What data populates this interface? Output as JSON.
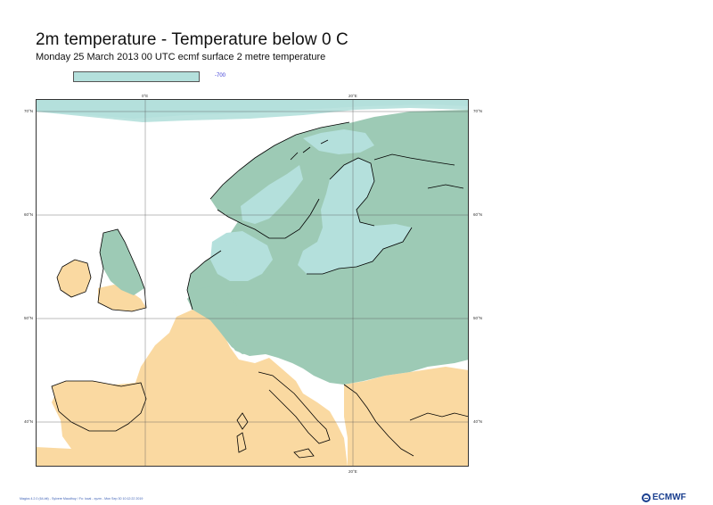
{
  "title": "2m temperature - Temperature below 0 C",
  "subtitle": "Monday 25 March 2013 00 UTC ecmf surface  2 metre temperature",
  "legend": {
    "label": "-700",
    "color": "#b4e0dc"
  },
  "colors": {
    "warm_land": "#fad9a1",
    "cold_land": "#9dcab5",
    "cold_sea": "#b4e0dc",
    "coast": "#000000",
    "grid": "#555555"
  },
  "ticks": {
    "lon_top": [
      "0°E",
      "20°E"
    ],
    "lon_bottom": [
      "20°E"
    ],
    "lat_left": [
      "70°N",
      "60°N",
      "50°N",
      "40°N"
    ],
    "lat_right": [
      "70°N",
      "60°N",
      "50°N",
      "40°N"
    ]
  },
  "footer": "Magics 4.2.0 (64-bit) - Sylvere Maudhuy / Fo: local - xyzm - Mon Sep 30 10:12:22 2019",
  "logo": "ECMWF"
}
